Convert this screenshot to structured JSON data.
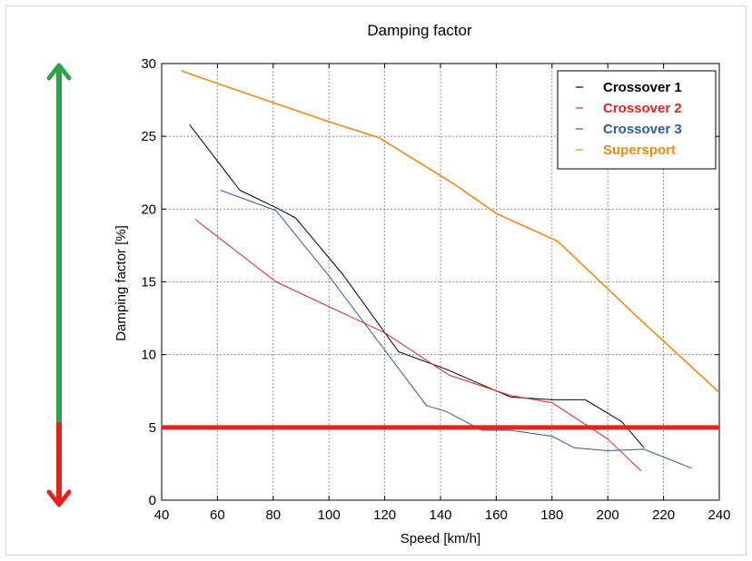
{
  "chart_data": {
    "type": "line",
    "title": "Damping factor",
    "xlabel": "Speed [km/h]",
    "ylabel": "Damping factor [%]",
    "xlim": [
      40,
      240
    ],
    "ylim": [
      0,
      30
    ],
    "xticks": [
      "40",
      "60",
      "80",
      "100",
      "120",
      "140",
      "160",
      "180",
      "200",
      "220",
      "240"
    ],
    "yticks": [
      "0",
      "5",
      "10",
      "15",
      "20",
      "25",
      "30"
    ],
    "grid": true,
    "legend_position": "top-right",
    "series": [
      {
        "name": "Crossover 1",
        "color": "#000000",
        "x": [
          50,
          68,
          81,
          88,
          105,
          125,
          142,
          165,
          180,
          192,
          205,
          213
        ],
        "y": [
          25.8,
          21.3,
          20.1,
          19.4,
          15.5,
          10.2,
          9.0,
          7.1,
          6.9,
          6.9,
          5.4,
          3.6
        ]
      },
      {
        "name": "Crossover 2",
        "color": "#e2251e",
        "x": [
          52,
          81,
          120,
          143,
          165,
          180,
          200,
          212
        ],
        "y": [
          19.3,
          15.0,
          11.5,
          8.6,
          7.2,
          6.7,
          4.2,
          2.0
        ]
      },
      {
        "name": "Crossover 3",
        "color": "#2c5ba8",
        "x": [
          61,
          81,
          100,
          135,
          142,
          155,
          165,
          180,
          188,
          200,
          213,
          230
        ],
        "y": [
          21.3,
          19.9,
          15.4,
          6.5,
          6.1,
          4.8,
          4.8,
          4.4,
          3.6,
          3.4,
          3.5,
          2.2
        ]
      },
      {
        "name": "Supersport",
        "color": "#ee8a12",
        "x": [
          47,
          65,
          100,
          118,
          145,
          160,
          182,
          210,
          240
        ],
        "y": [
          29.5,
          28.3,
          26.0,
          24.9,
          21.7,
          19.7,
          17.8,
          12.7,
          7.4
        ]
      }
    ],
    "reference_line": {
      "y": 5,
      "color": "#e3231c"
    },
    "side_arrow": {
      "split_value": 5,
      "upper_color": "#2ea24a",
      "lower_color": "#e3231c"
    }
  }
}
